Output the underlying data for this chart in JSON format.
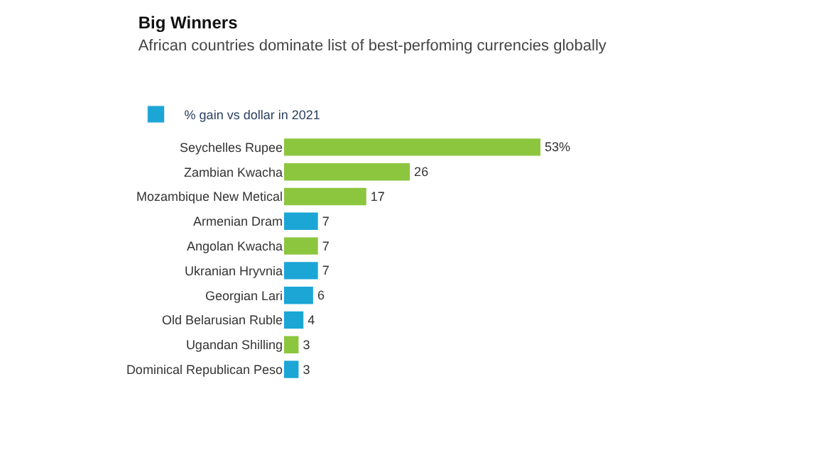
{
  "chart_data": {
    "type": "bar",
    "orientation": "horizontal",
    "title": "Big Winners",
    "subtitle": "African countries dominate list of best-perfoming currencies globally",
    "categories": [
      "Seychelles Rupee",
      "Zambian Kwacha",
      "Mozambique New Metical",
      "Armenian Dram",
      "Angolan Kwacha",
      "Ukranian Hryvnia",
      "Georgian Lari",
      "Old Belarusian Ruble",
      "Ugandan Shilling",
      "Dominical Republican Peso"
    ],
    "series": [
      {
        "name": "% gain vs dollar in 2021",
        "color": "#1ba6d6",
        "values": [
          53,
          26,
          17,
          7,
          7,
          7,
          6,
          4,
          3,
          3
        ],
        "colors": [
          "#8cc63f",
          "#8cc63f",
          "#8cc63f",
          "#1ba6d6",
          "#8cc63f",
          "#1ba6d6",
          "#1ba6d6",
          "#1ba6d6",
          "#8cc63f",
          "#1ba6d6"
        ],
        "value_labels": [
          "53%",
          "26",
          "17",
          "7",
          "7",
          "7",
          "6",
          "4",
          "3",
          "3"
        ]
      }
    ],
    "legend": "top left"
  }
}
